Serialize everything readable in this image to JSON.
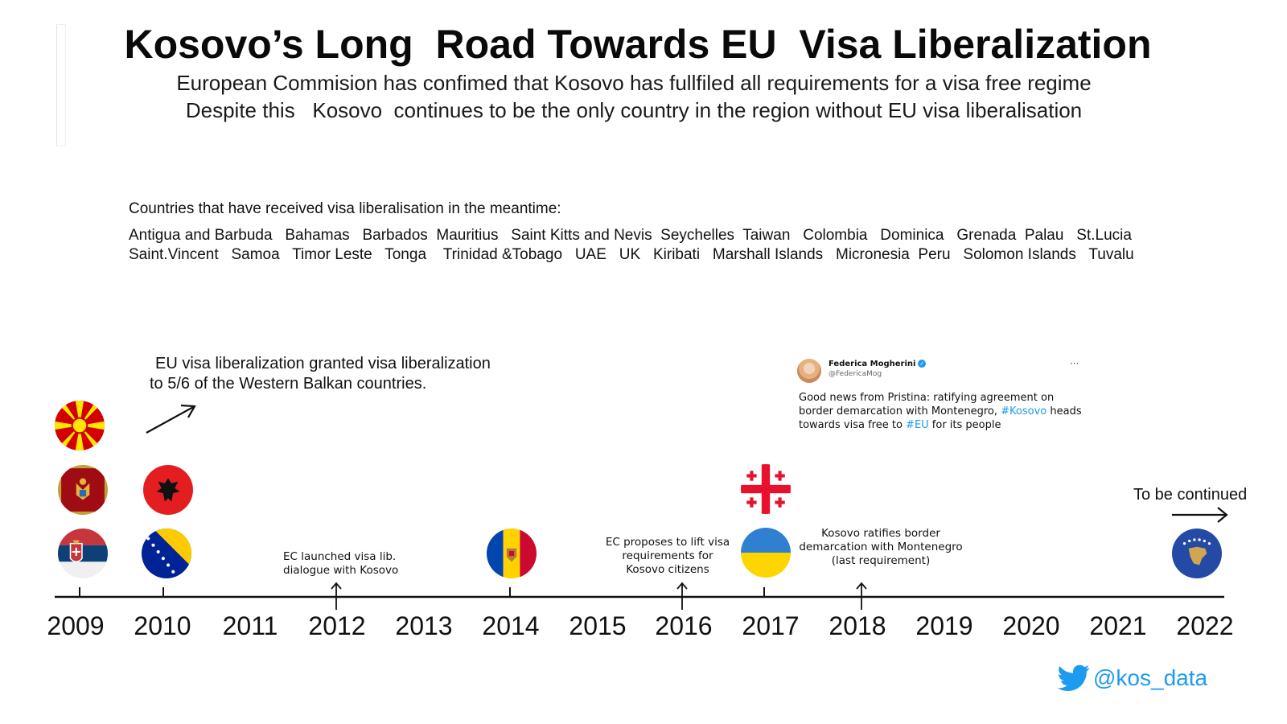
{
  "title": "Kosovo’s Long  Road Towards EU  Visa Liberalization",
  "subtitle_lines": [
    "European Commision has confimed that Kosovo has fullfiled all requirements for a visa free regime",
    "Despite this   Kosovo  continues to be the only country in the region without EU visa liberalisation"
  ],
  "countries": {
    "label": "Countries that have received visa liberalisation in the meantime:",
    "lines": [
      "Antigua and Barbuda   Bahamas   Barbados  Mauritius   Saint Kitts and Nevis  Seychelles  Taiwan   Colombia   Dominica   Grenada  Palau   St.Lucia",
      "Saint.Vincent   Samoa   Timor Leste   Tonga    Trinidad &Tobago   UAE   UK   Kiribati   Marshall Islands   Micronesia  Peru   Solomon Islands   Tuvalu"
    ]
  },
  "annotations": {
    "western_balkans": {
      "line1": "EU visa liberalization granted visa liberalization",
      "line2": "to 5/6 of the Western Balkan countries."
    },
    "ec_2012": {
      "line1": "EC  launched visa lib.",
      "line2": "dialogue with Kosovo"
    },
    "ec_2016": {
      "line1": "EC proposes to lift visa",
      "line2": "requirements for",
      "line3": "Kosovo citizens"
    },
    "ratify_2018": {
      "line1": "Kosovo ratifies border",
      "line2": "demarcation with Montenegro",
      "line3": "(last requirement)"
    },
    "to_be_continued": "To be continued"
  },
  "tweet": {
    "name": "Federica Mogherini",
    "handle": "@FedericaMog",
    "more": "···",
    "text_1": "Good news from Pristina: ratifying agreement on border demarcation with Montenegro, ",
    "tag_1": "#Kosovo",
    "text_2": " heads towards visa free to ",
    "tag_2": "#EU",
    "text_3": " for its people"
  },
  "timeline": {
    "years": [
      "2009",
      "2010",
      "2011",
      "2012",
      "2013",
      "2014",
      "2015",
      "2016",
      "2017",
      "2018",
      "2019",
      "2020",
      "2021",
      "2022"
    ]
  },
  "flags": [
    {
      "icon": "north-macedonia-flag-icon",
      "year": 2009
    },
    {
      "icon": "montenegro-flag-icon",
      "year": 2009
    },
    {
      "icon": "serbia-flag-icon",
      "year": 2009
    },
    {
      "icon": "albania-flag-icon",
      "year": 2010
    },
    {
      "icon": "bosnia-flag-icon",
      "year": 2010
    },
    {
      "icon": "moldova-flag-icon",
      "year": 2014
    },
    {
      "icon": "georgia-flag-icon",
      "year": 2017
    },
    {
      "icon": "ukraine-flag-icon",
      "year": 2017
    },
    {
      "icon": "kosovo-flag-icon",
      "year": 2022
    }
  ],
  "brand": {
    "handle": "@kos_data",
    "icon": "twitter-bird-icon"
  },
  "colors": {
    "twitter_blue": "#1d9bf0",
    "text": "#111111"
  }
}
